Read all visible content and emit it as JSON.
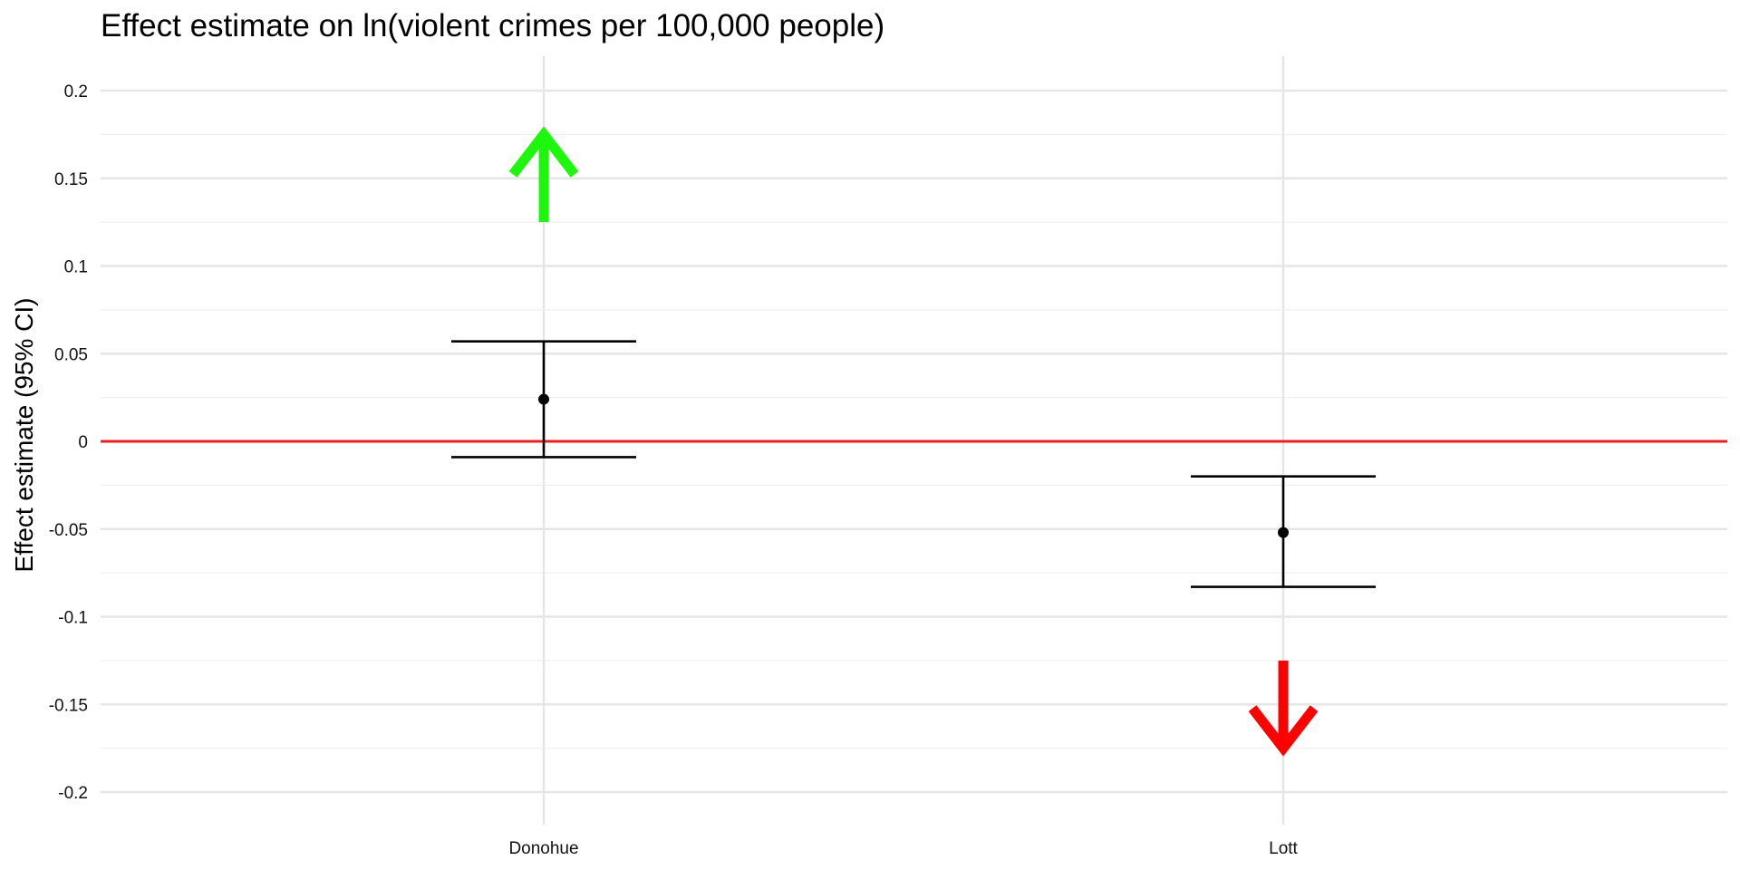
{
  "chart_data": {
    "type": "scatter",
    "title": "Effect estimate on ln(violent crimes per 100,000 people)",
    "xlabel": "",
    "ylabel": "Effect estimate (95% CI)",
    "categories": [
      "Donohue",
      "Lott"
    ],
    "series": [
      {
        "values": [
          0.024,
          -0.052
        ],
        "ci_low": [
          -0.009,
          -0.083
        ],
        "ci_high": [
          0.057,
          -0.02
        ]
      }
    ],
    "ylim": [
      -0.22,
      0.22
    ],
    "yticks": [
      0.2,
      0.15,
      0.1,
      0.05,
      0,
      -0.05,
      -0.1,
      -0.15,
      -0.2
    ],
    "ytick_labels": [
      "0.2",
      "0.15",
      "0.1",
      "0.05",
      "0",
      "-0.05",
      "-0.1",
      "-0.15",
      "-0.2"
    ],
    "reference_line": {
      "y": 0,
      "color": "#e8211d"
    },
    "arrows": [
      {
        "category": "Donohue",
        "direction": "up",
        "y_start": 0.125,
        "y_end": 0.175,
        "color": "#1df70b"
      },
      {
        "category": "Lott",
        "direction": "down",
        "y_start": -0.125,
        "y_end": -0.175,
        "color": "#ff0000"
      }
    ],
    "grid": true,
    "legend": "none"
  }
}
